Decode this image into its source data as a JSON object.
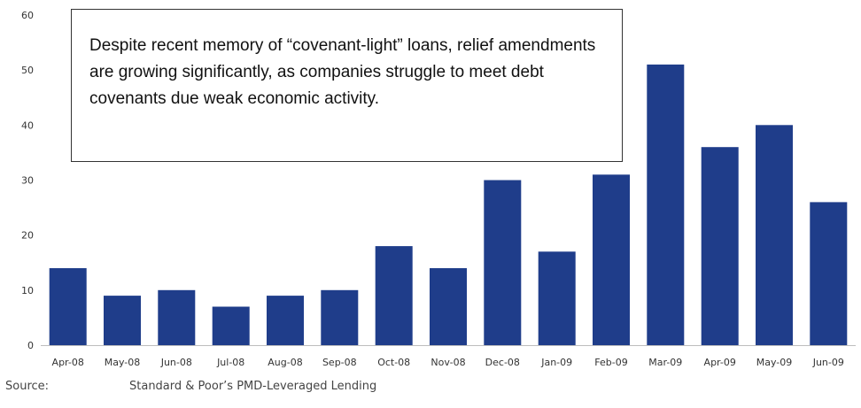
{
  "chart_data": {
    "type": "bar",
    "categories": [
      "Apr-08",
      "May-08",
      "Jun-08",
      "Jul-08",
      "Aug-08",
      "Sep-08",
      "Oct-08",
      "Nov-08",
      "Dec-08",
      "Jan-09",
      "Feb-09",
      "Mar-09",
      "Apr-09",
      "May-09",
      "Jun-09"
    ],
    "values": [
      14,
      9,
      10,
      7,
      9,
      10,
      18,
      14,
      30,
      17,
      31,
      51,
      36,
      40,
      26
    ],
    "ylim": [
      0,
      60
    ],
    "yticks": [
      0,
      10,
      20,
      30,
      40,
      50,
      60
    ],
    "grid": false,
    "bar_color": "#1f3d8a",
    "annotation": "Despite recent memory of “covenant-light” loans, relief amendments are growing significantly, as companies struggle to meet debt covenants due weak economic activity."
  },
  "source": {
    "label": "Source:",
    "text": "Standard & Poor’s PMD-Leveraged Lending"
  }
}
